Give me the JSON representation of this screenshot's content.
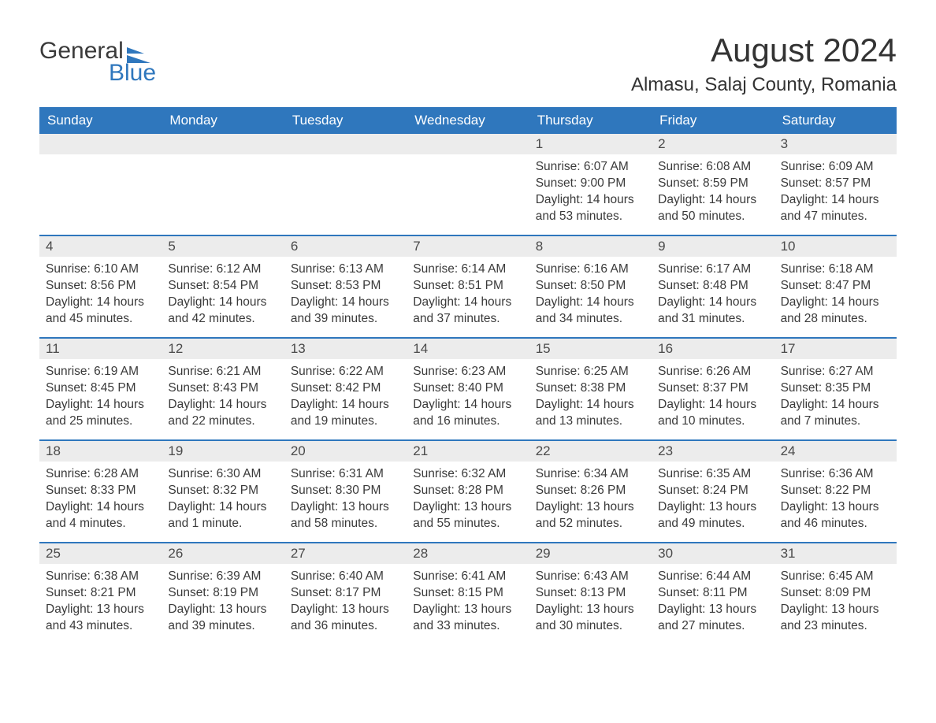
{
  "logo": {
    "word1": "General",
    "word2": "Blue",
    "accent_color": "#2f77bd"
  },
  "title": "August 2024",
  "location": "Almasu, Salaj County, Romania",
  "colors": {
    "header_bg": "#2f77bd",
    "header_text": "#ffffff",
    "daynum_bg": "#ececec",
    "row_border": "#2f77bd",
    "body_text": "#3a3a3a",
    "page_bg": "#ffffff"
  },
  "typography": {
    "title_fontsize_pt": 32,
    "location_fontsize_pt": 18,
    "dow_fontsize_pt": 13,
    "body_fontsize_pt": 12
  },
  "days_of_week": [
    "Sunday",
    "Monday",
    "Tuesday",
    "Wednesday",
    "Thursday",
    "Friday",
    "Saturday"
  ],
  "weeks": [
    [
      null,
      null,
      null,
      null,
      {
        "n": "1",
        "sunrise": "Sunrise: 6:07 AM",
        "sunset": "Sunset: 9:00 PM",
        "daylight": "Daylight: 14 hours and 53 minutes."
      },
      {
        "n": "2",
        "sunrise": "Sunrise: 6:08 AM",
        "sunset": "Sunset: 8:59 PM",
        "daylight": "Daylight: 14 hours and 50 minutes."
      },
      {
        "n": "3",
        "sunrise": "Sunrise: 6:09 AM",
        "sunset": "Sunset: 8:57 PM",
        "daylight": "Daylight: 14 hours and 47 minutes."
      }
    ],
    [
      {
        "n": "4",
        "sunrise": "Sunrise: 6:10 AM",
        "sunset": "Sunset: 8:56 PM",
        "daylight": "Daylight: 14 hours and 45 minutes."
      },
      {
        "n": "5",
        "sunrise": "Sunrise: 6:12 AM",
        "sunset": "Sunset: 8:54 PM",
        "daylight": "Daylight: 14 hours and 42 minutes."
      },
      {
        "n": "6",
        "sunrise": "Sunrise: 6:13 AM",
        "sunset": "Sunset: 8:53 PM",
        "daylight": "Daylight: 14 hours and 39 minutes."
      },
      {
        "n": "7",
        "sunrise": "Sunrise: 6:14 AM",
        "sunset": "Sunset: 8:51 PM",
        "daylight": "Daylight: 14 hours and 37 minutes."
      },
      {
        "n": "8",
        "sunrise": "Sunrise: 6:16 AM",
        "sunset": "Sunset: 8:50 PM",
        "daylight": "Daylight: 14 hours and 34 minutes."
      },
      {
        "n": "9",
        "sunrise": "Sunrise: 6:17 AM",
        "sunset": "Sunset: 8:48 PM",
        "daylight": "Daylight: 14 hours and 31 minutes."
      },
      {
        "n": "10",
        "sunrise": "Sunrise: 6:18 AM",
        "sunset": "Sunset: 8:47 PM",
        "daylight": "Daylight: 14 hours and 28 minutes."
      }
    ],
    [
      {
        "n": "11",
        "sunrise": "Sunrise: 6:19 AM",
        "sunset": "Sunset: 8:45 PM",
        "daylight": "Daylight: 14 hours and 25 minutes."
      },
      {
        "n": "12",
        "sunrise": "Sunrise: 6:21 AM",
        "sunset": "Sunset: 8:43 PM",
        "daylight": "Daylight: 14 hours and 22 minutes."
      },
      {
        "n": "13",
        "sunrise": "Sunrise: 6:22 AM",
        "sunset": "Sunset: 8:42 PM",
        "daylight": "Daylight: 14 hours and 19 minutes."
      },
      {
        "n": "14",
        "sunrise": "Sunrise: 6:23 AM",
        "sunset": "Sunset: 8:40 PM",
        "daylight": "Daylight: 14 hours and 16 minutes."
      },
      {
        "n": "15",
        "sunrise": "Sunrise: 6:25 AM",
        "sunset": "Sunset: 8:38 PM",
        "daylight": "Daylight: 14 hours and 13 minutes."
      },
      {
        "n": "16",
        "sunrise": "Sunrise: 6:26 AM",
        "sunset": "Sunset: 8:37 PM",
        "daylight": "Daylight: 14 hours and 10 minutes."
      },
      {
        "n": "17",
        "sunrise": "Sunrise: 6:27 AM",
        "sunset": "Sunset: 8:35 PM",
        "daylight": "Daylight: 14 hours and 7 minutes."
      }
    ],
    [
      {
        "n": "18",
        "sunrise": "Sunrise: 6:28 AM",
        "sunset": "Sunset: 8:33 PM",
        "daylight": "Daylight: 14 hours and 4 minutes."
      },
      {
        "n": "19",
        "sunrise": "Sunrise: 6:30 AM",
        "sunset": "Sunset: 8:32 PM",
        "daylight": "Daylight: 14 hours and 1 minute."
      },
      {
        "n": "20",
        "sunrise": "Sunrise: 6:31 AM",
        "sunset": "Sunset: 8:30 PM",
        "daylight": "Daylight: 13 hours and 58 minutes."
      },
      {
        "n": "21",
        "sunrise": "Sunrise: 6:32 AM",
        "sunset": "Sunset: 8:28 PM",
        "daylight": "Daylight: 13 hours and 55 minutes."
      },
      {
        "n": "22",
        "sunrise": "Sunrise: 6:34 AM",
        "sunset": "Sunset: 8:26 PM",
        "daylight": "Daylight: 13 hours and 52 minutes."
      },
      {
        "n": "23",
        "sunrise": "Sunrise: 6:35 AM",
        "sunset": "Sunset: 8:24 PM",
        "daylight": "Daylight: 13 hours and 49 minutes."
      },
      {
        "n": "24",
        "sunrise": "Sunrise: 6:36 AM",
        "sunset": "Sunset: 8:22 PM",
        "daylight": "Daylight: 13 hours and 46 minutes."
      }
    ],
    [
      {
        "n": "25",
        "sunrise": "Sunrise: 6:38 AM",
        "sunset": "Sunset: 8:21 PM",
        "daylight": "Daylight: 13 hours and 43 minutes."
      },
      {
        "n": "26",
        "sunrise": "Sunrise: 6:39 AM",
        "sunset": "Sunset: 8:19 PM",
        "daylight": "Daylight: 13 hours and 39 minutes."
      },
      {
        "n": "27",
        "sunrise": "Sunrise: 6:40 AM",
        "sunset": "Sunset: 8:17 PM",
        "daylight": "Daylight: 13 hours and 36 minutes."
      },
      {
        "n": "28",
        "sunrise": "Sunrise: 6:41 AM",
        "sunset": "Sunset: 8:15 PM",
        "daylight": "Daylight: 13 hours and 33 minutes."
      },
      {
        "n": "29",
        "sunrise": "Sunrise: 6:43 AM",
        "sunset": "Sunset: 8:13 PM",
        "daylight": "Daylight: 13 hours and 30 minutes."
      },
      {
        "n": "30",
        "sunrise": "Sunrise: 6:44 AM",
        "sunset": "Sunset: 8:11 PM",
        "daylight": "Daylight: 13 hours and 27 minutes."
      },
      {
        "n": "31",
        "sunrise": "Sunrise: 6:45 AM",
        "sunset": "Sunset: 8:09 PM",
        "daylight": "Daylight: 13 hours and 23 minutes."
      }
    ]
  ]
}
